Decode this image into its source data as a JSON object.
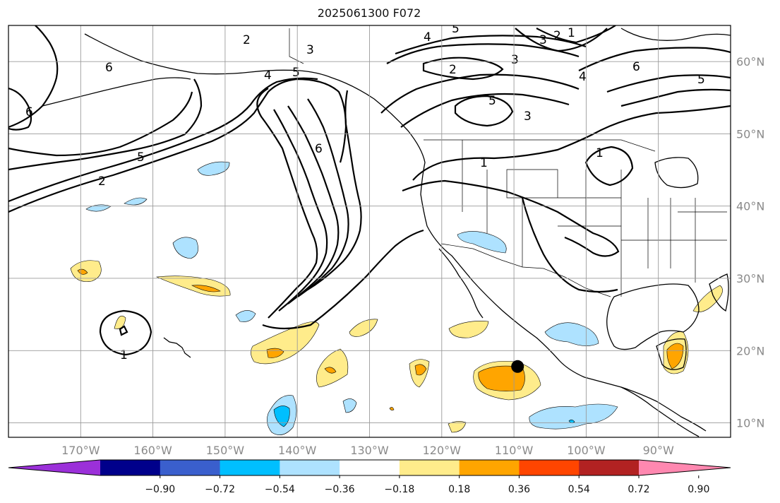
{
  "title": "2025061300 F072",
  "map": {
    "projection": "PlateCarree",
    "extent": {
      "lon_min": -180,
      "lon_max": -80,
      "lat_min": 8,
      "lat_max": 65
    },
    "gridlines": true,
    "lon_ticks": [
      {
        "lon": -170,
        "label": "170°W"
      },
      {
        "lon": -160,
        "label": "160°W"
      },
      {
        "lon": -150,
        "label": "150°W"
      },
      {
        "lon": -140,
        "label": "140°W"
      },
      {
        "lon": -130,
        "label": "130°W"
      },
      {
        "lon": -120,
        "label": "120°W"
      },
      {
        "lon": -110,
        "label": "110°W"
      },
      {
        "lon": -100,
        "label": "100°W"
      },
      {
        "lon": -90,
        "label": "90°W"
      }
    ],
    "lat_ticks": [
      {
        "lat": 60,
        "label": "60°N"
      },
      {
        "lat": 50,
        "label": "50°N"
      },
      {
        "lat": 40,
        "label": "40°N"
      },
      {
        "lat": 30,
        "label": "30°N"
      },
      {
        "lat": 20,
        "label": "20°N"
      },
      {
        "lat": 10,
        "label": "10°N"
      }
    ],
    "contour_labels": [
      "2",
      "3",
      "4",
      "5",
      "6",
      "1"
    ],
    "marker": {
      "name": "black-dot",
      "lon": -109.5,
      "lat": 17.8,
      "color": "#000000"
    }
  },
  "colorbar": {
    "colors": [
      "#9b30d9",
      "#00008b",
      "#3a5fcd",
      "#00bfff",
      "#aee2ff",
      "#ffffff",
      "#ffec8b",
      "#ffa500",
      "#ff4500",
      "#b22222",
      "#ff88b0"
    ],
    "tick_labels": [
      "−0.90",
      "−0.72",
      "−0.54",
      "−0.36",
      "−0.18",
      "0.18",
      "0.36",
      "0.54",
      "0.72",
      "0.90"
    ],
    "extend": "both"
  }
}
